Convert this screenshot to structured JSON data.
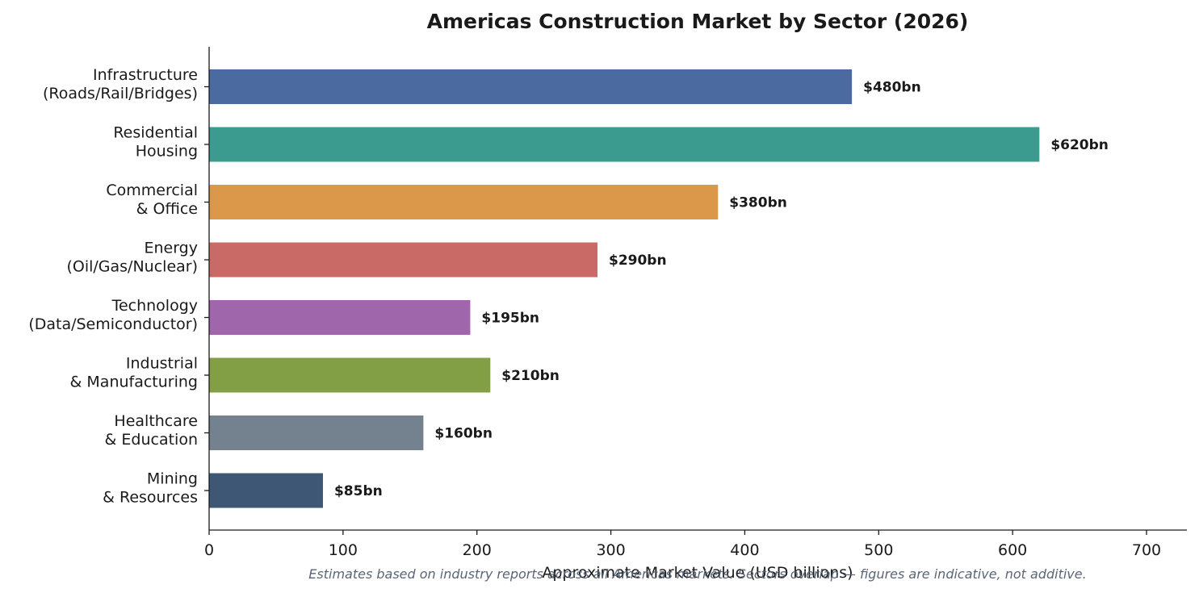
{
  "chart_data": {
    "type": "bar",
    "orientation": "horizontal",
    "title": "Americas Construction Market by Sector (2026)",
    "xlabel": "Approximate Market Value (USD billions)",
    "ylabel": "",
    "xlim": [
      0,
      730
    ],
    "xticks": [
      "0",
      "100",
      "200",
      "300",
      "400",
      "500",
      "600",
      "700"
    ],
    "grid": false,
    "categories": [
      [
        "Infrastructure",
        "(Roads/Rail/Bridges)"
      ],
      [
        "Residential",
        "Housing"
      ],
      [
        "Commercial",
        "& Office"
      ],
      [
        "Energy",
        "(Oil/Gas/Nuclear)"
      ],
      [
        "Technology",
        "(Data/Semiconductor)"
      ],
      [
        "Industrial",
        "& Manufacturing"
      ],
      [
        "Healthcare",
        "& Education"
      ],
      [
        "Mining",
        "& Resources"
      ]
    ],
    "values": [
      480,
      620,
      380,
      290,
      195,
      210,
      160,
      85
    ],
    "value_labels": [
      "$480bn",
      "$620bn",
      "$380bn",
      "$290bn",
      "$195bn",
      "$210bn",
      "$160bn",
      "$85bn"
    ],
    "colors": [
      "#4a6aa0",
      "#3b9b8f",
      "#db984b",
      "#c96a66",
      "#a066ac",
      "#829f45",
      "#748290",
      "#3e5774"
    ],
    "footnote": "Estimates based on industry reports across all Americas markets. Sectors overlap — figures are indicative, not additive."
  }
}
